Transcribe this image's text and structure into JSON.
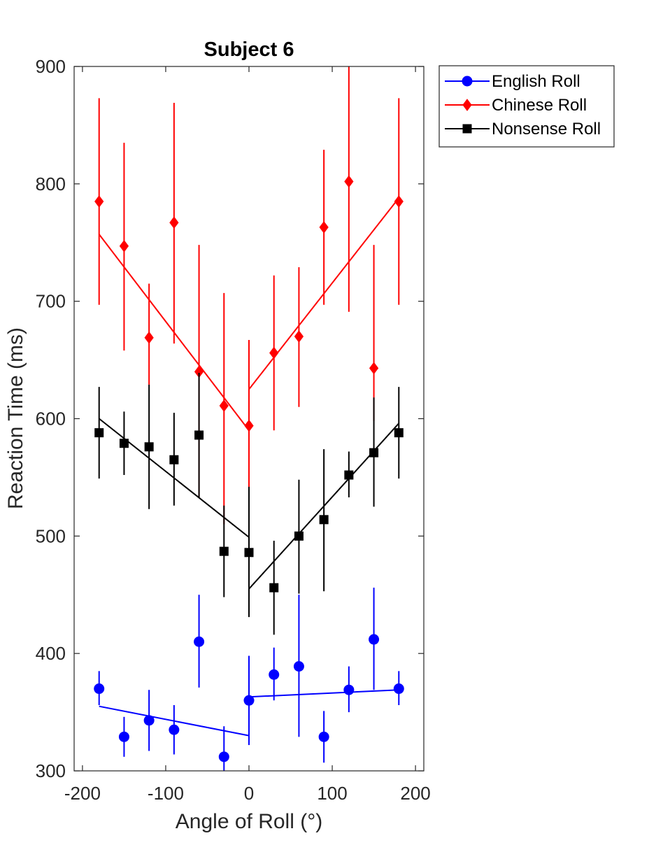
{
  "chart_data": {
    "type": "scatter",
    "title": "Subject 6",
    "xlabel": "Angle of Roll (°)",
    "ylabel": "Reaction Time (ms)",
    "xlim": [
      -210,
      210
    ],
    "ylim": [
      300,
      900
    ],
    "xticks": [
      -200,
      -100,
      0,
      100,
      200
    ],
    "yticks": [
      300,
      400,
      500,
      600,
      700,
      800,
      900
    ],
    "grid": false,
    "legend_position": "outside-top-right",
    "x": [
      -180,
      -150,
      -120,
      -90,
      -60,
      -30,
      0,
      30,
      60,
      90,
      120,
      150,
      180
    ],
    "series": [
      {
        "name": "English Roll",
        "color": "#0000ff",
        "marker": "circle",
        "values": [
          370,
          329,
          343,
          335,
          410,
          312,
          360,
          382,
          389,
          329,
          369,
          412,
          370
        ],
        "err_low": [
          356,
          312,
          317,
          314,
          371,
          295,
          322,
          360,
          329,
          307,
          350,
          369,
          356
        ],
        "err_high": [
          385,
          346,
          369,
          356,
          450,
          338,
          398,
          405,
          450,
          351,
          389,
          456,
          385
        ],
        "fit": [
          [
            -180,
            355
          ],
          [
            0,
            330
          ],
          [
            0,
            363
          ],
          [
            180,
            369
          ]
        ]
      },
      {
        "name": "Chinese Roll",
        "color": "#ff0000",
        "marker": "diamond",
        "values": [
          785,
          747,
          669,
          767,
          640,
          611,
          594,
          656,
          670,
          763,
          802,
          643,
          785
        ],
        "err_low": [
          697,
          658,
          629,
          664,
          533,
          510,
          541,
          590,
          610,
          697,
          691,
          598,
          697
        ],
        "err_high": [
          873,
          835,
          715,
          869,
          748,
          707,
          667,
          722,
          729,
          829,
          900,
          748,
          873
        ],
        "fit": [
          [
            -180,
            757
          ],
          [
            0,
            590
          ],
          [
            0,
            625
          ],
          [
            180,
            788
          ]
        ]
      },
      {
        "name": "Nonsense Roll",
        "color": "#000000",
        "marker": "square",
        "values": [
          588,
          579,
          576,
          565,
          586,
          487,
          486,
          456,
          500,
          514,
          552,
          571,
          588
        ],
        "err_low": [
          549,
          552,
          523,
          526,
          533,
          448,
          431,
          416,
          451,
          453,
          533,
          525,
          549
        ],
        "err_high": [
          627,
          606,
          629,
          605,
          639,
          526,
          542,
          496,
          548,
          574,
          572,
          618,
          627
        ],
        "fit": [
          [
            -180,
            600
          ],
          [
            0,
            499
          ],
          [
            0,
            455
          ],
          [
            180,
            596
          ]
        ]
      }
    ]
  }
}
